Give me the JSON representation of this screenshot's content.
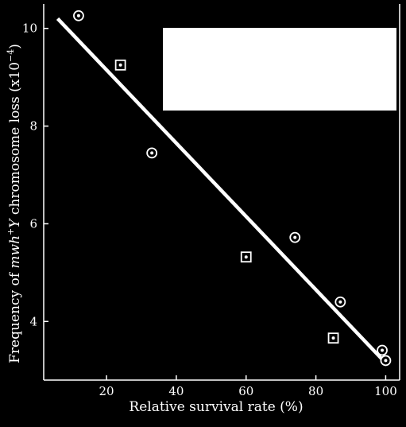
{
  "chart_data": {
    "type": "scatter",
    "title": "",
    "xlabel": "Relative survival rate (%)",
    "ylabel": {
      "prefix": "Frequency of ",
      "italic": "mwh",
      "superscript_plus": "+",
      "italic2": "Y",
      "suffix": " chromosome loss (x10",
      "exponent": "−4",
      "close": ")"
    },
    "xlim": [
      2,
      104
    ],
    "ylim": [
      2.8,
      10.5
    ],
    "xticks": [
      20,
      40,
      60,
      80,
      100
    ],
    "yticks": [
      4,
      6,
      8,
      10
    ],
    "series": [
      {
        "marker": "circle-dot",
        "points": [
          [
            12,
            10.26
          ],
          [
            33,
            7.45
          ],
          [
            74,
            5.72
          ],
          [
            87,
            4.4
          ],
          [
            99,
            3.41
          ],
          [
            100,
            3.2
          ]
        ]
      },
      {
        "marker": "square-dot",
        "points": [
          [
            24,
            9.25
          ],
          [
            60,
            5.32
          ],
          [
            85,
            3.66
          ]
        ]
      }
    ],
    "regression_line": {
      "x": [
        6,
        100
      ],
      "y": [
        10.2,
        3.15
      ]
    },
    "legend_box": {
      "present": true,
      "placement": "top-right",
      "fill": "#ffffff"
    },
    "grid": false,
    "colors": {
      "background": "#000000",
      "foreground": "#ffffff"
    }
  }
}
